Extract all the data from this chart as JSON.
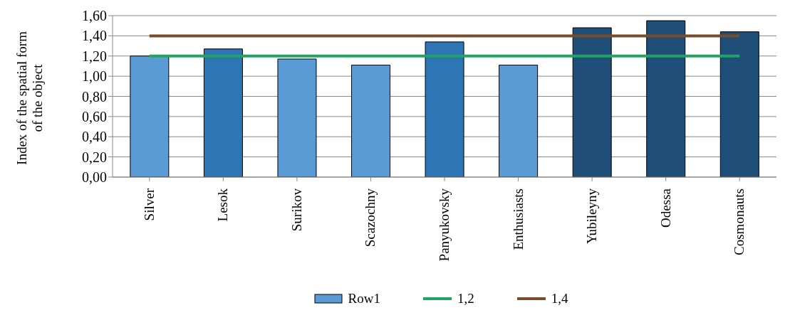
{
  "chart_data": {
    "type": "bar",
    "ylabel": "Index of the spatial form of the object",
    "categories": [
      "Silver",
      "Lesok",
      "Surikov",
      "Scazochny",
      "Panyukovsky",
      "Enthusiasts",
      "Yubileyny",
      "Odessa",
      "Cosmonauts"
    ],
    "series": [
      {
        "name": "Row1",
        "color": "#5b9bd5",
        "colors": [
          "#5b9bd5",
          "#2e75b6",
          "#5b9bd5",
          "#5b9bd5",
          "#2e75b6",
          "#5b9bd5",
          "#1f4e79",
          "#1f4e79",
          "#1f4e79"
        ],
        "values": [
          1.2,
          1.27,
          1.17,
          1.11,
          1.34,
          1.11,
          1.48,
          1.55,
          1.44
        ]
      },
      {
        "name": "1,2",
        "type": "line",
        "color": "#1fa463",
        "values": [
          1.2,
          1.2,
          1.2,
          1.2,
          1.2,
          1.2,
          1.2,
          1.2,
          1.2
        ]
      },
      {
        "name": "1,4",
        "type": "line",
        "color": "#7b4a26",
        "values": [
          1.4,
          1.4,
          1.4,
          1.4,
          1.4,
          1.4,
          1.4,
          1.4,
          1.4
        ]
      }
    ],
    "ylim": [
      0,
      1.6
    ],
    "yticks": [
      {
        "value": 0,
        "label": "0,00"
      },
      {
        "value": 0.2,
        "label": "0,20"
      },
      {
        "value": 0.4,
        "label": "0,40"
      },
      {
        "value": 0.6,
        "label": "0,60"
      },
      {
        "value": 0.8,
        "label": "0,80"
      },
      {
        "value": 1,
        "label": "1,00"
      },
      {
        "value": 1.2,
        "label": "1,20"
      },
      {
        "value": 1.4,
        "label": "1,40"
      },
      {
        "value": 1.6,
        "label": "1,60"
      }
    ],
    "grid": "y",
    "legend": "bottom",
    "marker": "none"
  }
}
